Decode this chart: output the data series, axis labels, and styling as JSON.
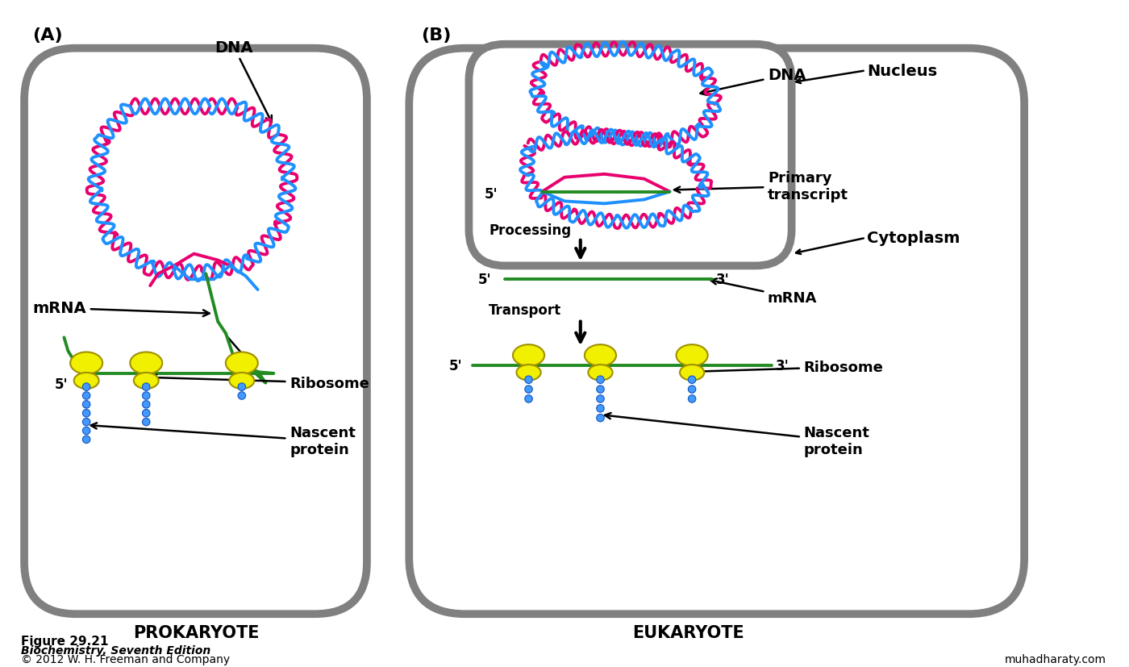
{
  "background": "#ffffff",
  "cell_border_color": "#808080",
  "cell_border_lw": 7,
  "dna_pink": "#e8006e",
  "dna_blue": "#1e90ff",
  "mrna_green": "#228B22",
  "ribosome_yellow": "#f0f000",
  "ribosome_outline": "#a09000",
  "protein_blue": "#4499ff",
  "arrow_color": "#000000",
  "text_color": "#000000",
  "nucleus_border": "#808080",
  "title_A": "(A)",
  "title_B": "(B)",
  "label_prokaryote": "PROKARYOTE",
  "label_eukaryote": "EUKARYOTE",
  "fig_label": "Figure 29.21",
  "fig_subtitle1": "Biochemistry, Seventh Edition",
  "fig_subtitle2": "© 2012 W. H. Freeman and Company",
  "watermark": "muhadharaty.com"
}
